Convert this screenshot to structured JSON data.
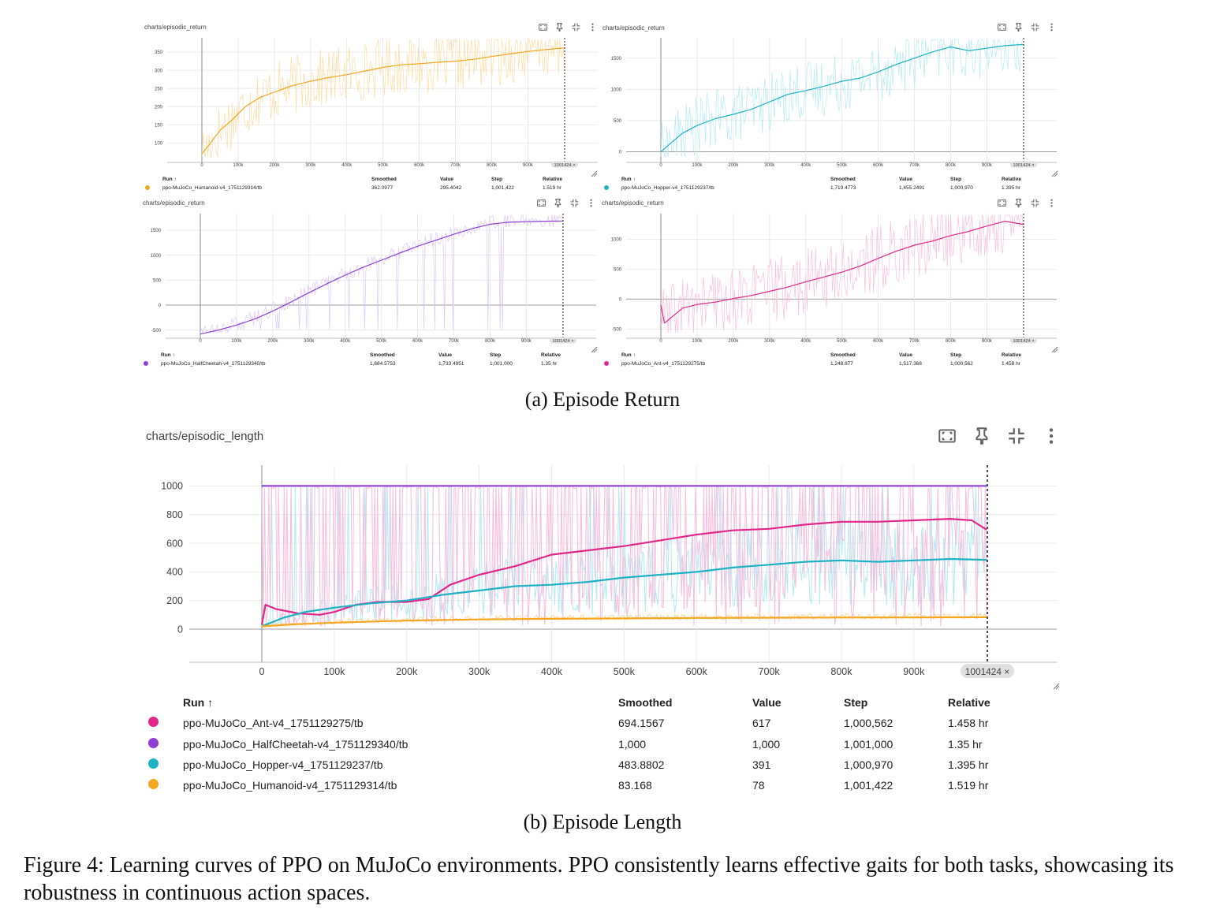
{
  "caption_a": "(a) Episode Return",
  "caption_b": "(b) Episode Length",
  "figure_caption": "Figure 4: Learning curves of PPO on MuJoCo environments. PPO consistently learns effective gaits for both tasks, showcasing its robustness in continuous action spaces.",
  "colors": {
    "humanoid": "#f5a623",
    "humanoid_raw": "#fbd99a",
    "hopper": "#1fb2c4",
    "hopper_raw": "#aee9f0",
    "halfcheetah": "#8e3fd4",
    "halfcheetah_raw": "#d9c2f3",
    "ant": "#e0288a",
    "ant_raw": "#f7b9db"
  },
  "toolbar_icons": [
    "fit-domain-icon",
    "pin-icon",
    "collapse-icon",
    "more-vert-icon"
  ],
  "legend_headers": {
    "run": "Run ↑",
    "smoothed": "Smoothed",
    "value": "Value",
    "step": "Step",
    "relative": "Relative"
  },
  "chart_data": [
    {
      "id": "humanoid_return",
      "type": "line",
      "title": "charts/episodic_return",
      "end_badge": "1001424 ×",
      "x_ticks": [
        "0",
        "100k",
        "200k",
        "300k",
        "400k",
        "500k",
        "600k",
        "700k",
        "800k",
        "900k"
      ],
      "y_ticks": [
        100,
        150,
        200,
        250,
        300,
        350
      ],
      "xlim": [
        0,
        1001424
      ],
      "ylim": [
        55,
        385
      ],
      "series": [
        {
          "name": "ppo-MuJoCo_Humanoid-v4_1751129314/tb",
          "color_key": "humanoid",
          "x": [
            0,
            20000,
            50000,
            80000,
            120000,
            160000,
            200000,
            250000,
            300000,
            350000,
            400000,
            450000,
            500000,
            550000,
            600000,
            650000,
            700000,
            750000,
            800000,
            850000,
            900000,
            950000,
            1001422
          ],
          "y": [
            70,
            95,
            135,
            160,
            200,
            225,
            240,
            258,
            270,
            280,
            288,
            298,
            308,
            315,
            318,
            322,
            325,
            330,
            338,
            345,
            352,
            357,
            362
          ]
        }
      ],
      "legend": [
        {
          "run": "ppo-MuJoCo_Humanoid-v4_1751129314/tb",
          "color_key": "humanoid",
          "smoothed": "362.0977",
          "value": "295.4042",
          "step": "1,001,422",
          "relative": "1.519 hr"
        }
      ]
    },
    {
      "id": "hopper_return",
      "type": "line",
      "title": "charts/episodic_return",
      "end_badge": "1001424 ×",
      "x_ticks": [
        "0",
        "100k",
        "200k",
        "300k",
        "400k",
        "500k",
        "600k",
        "700k",
        "800k",
        "900k"
      ],
      "y_ticks": [
        0,
        500,
        1000,
        1500
      ],
      "xlim": [
        0,
        1001424
      ],
      "ylim": [
        -120,
        1800
      ],
      "series": [
        {
          "name": "ppo-MuJoCo_Hopper-v4_1751129237/tb",
          "color_key": "hopper",
          "x": [
            0,
            30000,
            60000,
            100000,
            150000,
            200000,
            250000,
            300000,
            350000,
            400000,
            450000,
            500000,
            550000,
            600000,
            650000,
            700000,
            750000,
            800000,
            850000,
            900000,
            950000,
            1000970
          ],
          "y": [
            0,
            150,
            300,
            420,
            530,
            600,
            680,
            800,
            920,
            980,
            1050,
            1130,
            1180,
            1280,
            1400,
            1500,
            1600,
            1680,
            1620,
            1660,
            1700,
            1719
          ]
        }
      ],
      "legend": [
        {
          "run": "ppo-MuJoCo_Hopper-v4_1751129237/tb",
          "color_key": "hopper",
          "smoothed": "1,719.4773",
          "value": "1,455.2491",
          "step": "1,000,970",
          "relative": "1.395 hr"
        }
      ]
    },
    {
      "id": "halfcheetah_return",
      "type": "line",
      "title": "charts/episodic_return",
      "end_badge": "1001424 ×",
      "x_ticks": [
        "0",
        "100k",
        "200k",
        "300k",
        "400k",
        "500k",
        "600k",
        "700k",
        "800k",
        "900k"
      ],
      "y_ticks": [
        -500,
        0,
        500,
        1000,
        1500
      ],
      "xlim": [
        0,
        1001424
      ],
      "ylim": [
        -600,
        1800
      ],
      "series": [
        {
          "name": "ppo-MuJoCo_HalfCheetah-v4_1751129340/tb",
          "color_key": "halfcheetah",
          "x": [
            0,
            50000,
            100000,
            150000,
            200000,
            250000,
            300000,
            350000,
            400000,
            450000,
            500000,
            550000,
            600000,
            650000,
            700000,
            750000,
            800000,
            850000,
            900000,
            950000,
            1001000
          ],
          "y": [
            -580,
            -500,
            -400,
            -280,
            -120,
            60,
            250,
            430,
            600,
            760,
            900,
            1040,
            1180,
            1300,
            1420,
            1530,
            1620,
            1660,
            1670,
            1680,
            1684
          ]
        }
      ],
      "legend": [
        {
          "run": "ppo-MuJoCo_HalfCheetah-v4_1751129340/tb",
          "color_key": "halfcheetah",
          "smoothed": "1,684.5753",
          "value": "1,733.4951",
          "step": "1,001,000",
          "relative": "1.35 hr"
        }
      ]
    },
    {
      "id": "ant_return",
      "type": "line",
      "title": "charts/episodic_return",
      "end_badge": "1001424 ×",
      "x_ticks": [
        "0",
        "100k",
        "200k",
        "300k",
        "400k",
        "500k",
        "600k",
        "700k",
        "800k",
        "900k"
      ],
      "y_ticks": [
        -500,
        0,
        500,
        1000
      ],
      "xlim": [
        0,
        1001424
      ],
      "ylim": [
        -600,
        1400
      ],
      "series": [
        {
          "name": "ppo-MuJoCo_Ant-v4_1751129275/tb",
          "color_key": "ant",
          "x": [
            0,
            10000,
            30000,
            60000,
            100000,
            150000,
            200000,
            250000,
            300000,
            350000,
            400000,
            450000,
            500000,
            550000,
            600000,
            650000,
            700000,
            750000,
            800000,
            850000,
            900000,
            950000,
            1000562
          ],
          "y": [
            -100,
            -400,
            -300,
            -150,
            -90,
            -50,
            10,
            60,
            130,
            200,
            290,
            370,
            450,
            550,
            680,
            800,
            900,
            970,
            1060,
            1130,
            1220,
            1300,
            1248
          ]
        }
      ],
      "legend": [
        {
          "run": "ppo-MuJoCo_Ant-v4_1751129275/tb",
          "color_key": "ant",
          "smoothed": "1,248.877",
          "value": "1,517.368",
          "step": "1,000,562",
          "relative": "1.458 hr"
        }
      ]
    },
    {
      "id": "episodic_length",
      "type": "line",
      "title": "charts/episodic_length",
      "end_badge": "1001424 ×",
      "x_ticks": [
        "0",
        "100k",
        "200k",
        "300k",
        "400k",
        "500k",
        "600k",
        "700k",
        "800k",
        "900k"
      ],
      "y_ticks": [
        0,
        200,
        400,
        600,
        800,
        1000
      ],
      "xlim": [
        0,
        1001424
      ],
      "ylim": [
        -110,
        1090
      ],
      "series": [
        {
          "name": "ppo-MuJoCo_HalfCheetah-v4_1751129340/tb",
          "color_key": "halfcheetah",
          "x": [
            0,
            1001000
          ],
          "y": [
            1000,
            1000
          ]
        },
        {
          "name": "ppo-MuJoCo_Ant-v4_1751129275/tb",
          "color_key": "ant",
          "x": [
            0,
            5000,
            20000,
            50000,
            80000,
            100000,
            130000,
            160000,
            200000,
            230000,
            260000,
            300000,
            350000,
            400000,
            450000,
            500000,
            550000,
            600000,
            650000,
            700000,
            750000,
            800000,
            850000,
            900000,
            950000,
            980000,
            1000562
          ],
          "y": [
            30,
            170,
            140,
            110,
            100,
            120,
            170,
            190,
            190,
            210,
            310,
            380,
            440,
            520,
            550,
            580,
            620,
            660,
            690,
            700,
            730,
            750,
            750,
            760,
            770,
            760,
            694
          ]
        },
        {
          "name": "ppo-MuJoCo_Hopper-v4_1751129237/tb",
          "color_key": "hopper",
          "x": [
            0,
            30000,
            60000,
            100000,
            150000,
            200000,
            250000,
            300000,
            350000,
            400000,
            450000,
            500000,
            550000,
            600000,
            650000,
            700000,
            750000,
            800000,
            850000,
            900000,
            950000,
            1000970
          ],
          "y": [
            20,
            80,
            120,
            150,
            180,
            200,
            240,
            270,
            300,
            310,
            330,
            360,
            380,
            400,
            430,
            450,
            470,
            480,
            470,
            480,
            490,
            484
          ]
        },
        {
          "name": "ppo-MuJoCo_Humanoid-v4_1751129314/tb",
          "color_key": "humanoid",
          "x": [
            0,
            50000,
            100000,
            200000,
            300000,
            400000,
            500000,
            600000,
            700000,
            800000,
            900000,
            1001422
          ],
          "y": [
            20,
            35,
            45,
            60,
            68,
            72,
            75,
            78,
            80,
            81,
            82,
            83
          ]
        }
      ],
      "legend": [
        {
          "run": "ppo-MuJoCo_Ant-v4_1751129275/tb",
          "color_key": "ant",
          "smoothed": "694.1567",
          "value": "617",
          "step": "1,000,562",
          "relative": "1.458 hr"
        },
        {
          "run": "ppo-MuJoCo_HalfCheetah-v4_1751129340/tb",
          "color_key": "halfcheetah",
          "smoothed": "1,000",
          "value": "1,000",
          "step": "1,001,000",
          "relative": "1.35 hr"
        },
        {
          "run": "ppo-MuJoCo_Hopper-v4_1751129237/tb",
          "color_key": "hopper",
          "smoothed": "483.8802",
          "value": "391",
          "step": "1,000,970",
          "relative": "1.395 hr"
        },
        {
          "run": "ppo-MuJoCo_Humanoid-v4_1751129314/tb",
          "color_key": "humanoid",
          "smoothed": "83.168",
          "value": "78",
          "step": "1,001,422",
          "relative": "1.519 hr"
        }
      ]
    }
  ]
}
